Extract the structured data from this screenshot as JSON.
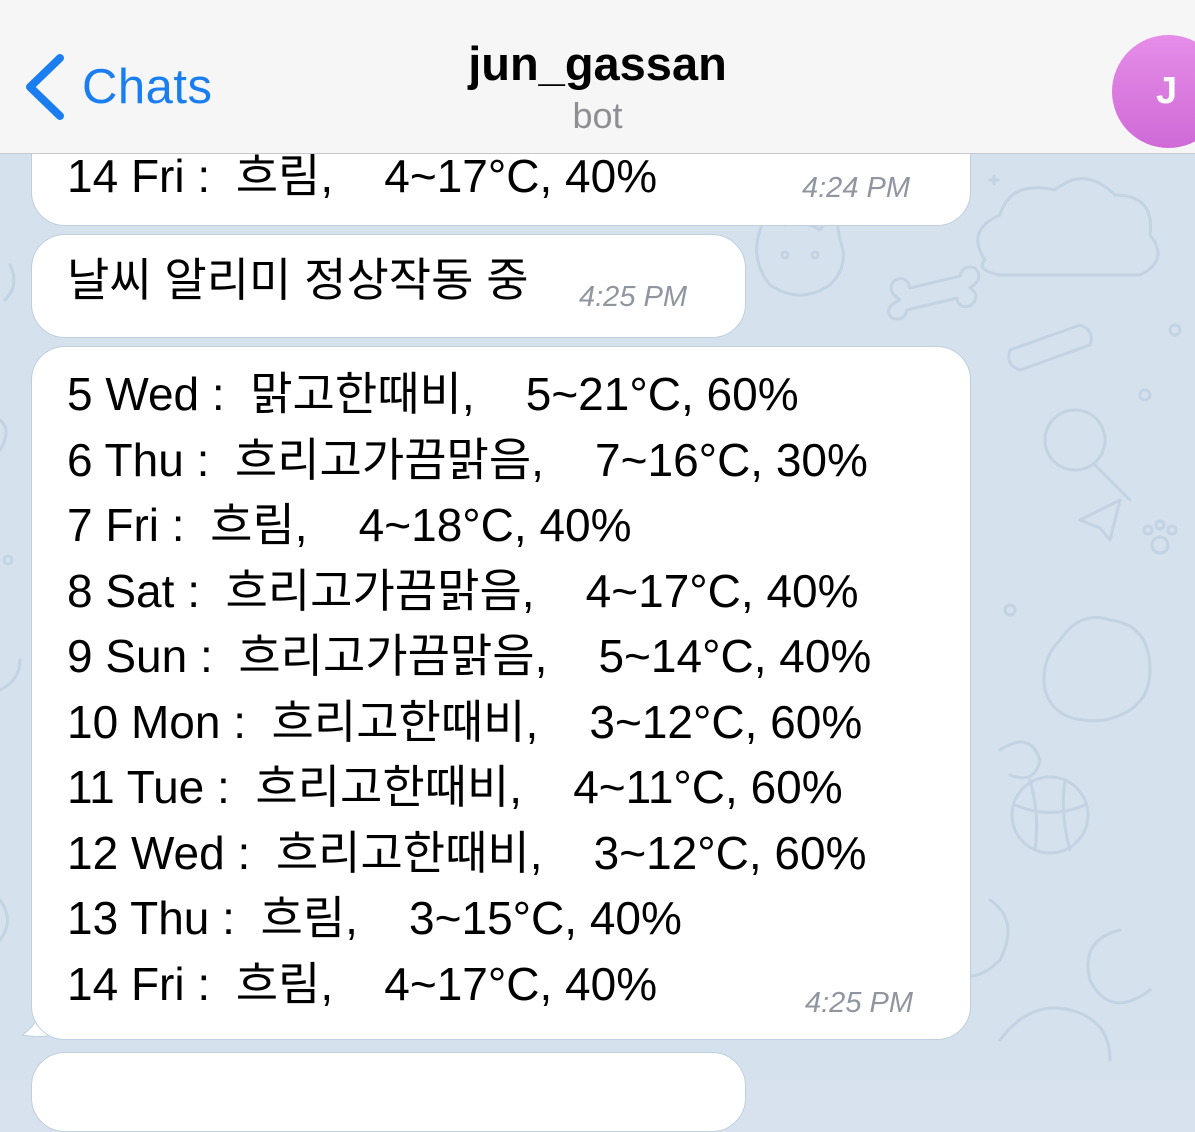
{
  "header": {
    "back_label": "Chats",
    "title": "jun_gassan",
    "subtitle": "bot",
    "avatar_initial": "J",
    "accent_color": "#1b7ef0",
    "avatar_color": "#d874dc"
  },
  "messages": [
    {
      "lines": [
        "14 Fri :  흐림,    4~17°C, 40%"
      ],
      "time": "4:24 PM"
    },
    {
      "lines": [
        "날씨 알리미 정상작동 중"
      ],
      "time": "4:25 PM"
    },
    {
      "lines": [
        "5 Wed :  맑고한때비,    5~21°C, 60%",
        "6 Thu :  흐리고가끔맑음,    7~16°C, 30%",
        "7 Fri :  흐림,    4~18°C, 40%",
        "8 Sat :  흐리고가끔맑음,    4~17°C, 40%",
        "9 Sun :  흐리고가끔맑음,    5~14°C, 40%",
        "10 Mon :  흐리고한때비,    3~12°C, 60%",
        "11 Tue :  흐리고한때비,    4~11°C, 60%",
        "12 Wed :  흐리고한때비,    3~12°C, 60%",
        "13 Thu :  흐림,    3~15°C, 40%",
        "14 Fri :  흐림,    4~17°C, 40%"
      ],
      "time": "4:25 PM"
    }
  ]
}
